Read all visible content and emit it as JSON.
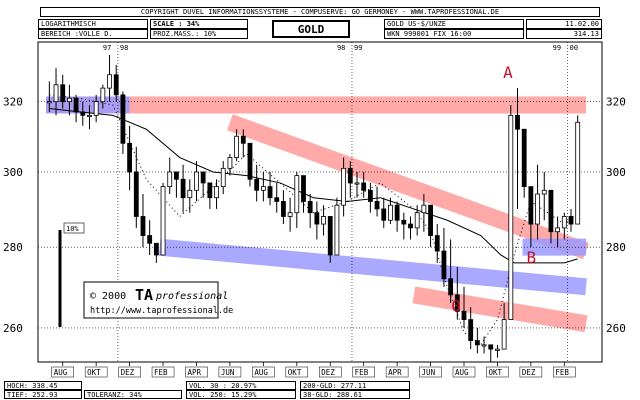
{
  "header": {
    "copyright": "COPYRIGHT  DUVEL INFORMATIONSSYSTEME - COMPUSERVE: GO GERMONEY - WWW.TAPROFESSIONAL.DE",
    "scale_type": "LOGARITHMISCH",
    "range": "BEREICH :VOLLE D.",
    "scale": "SCALE : 34%",
    "prozmass": "PROZ.MASS.:  10%",
    "title": "GOLD",
    "instrument": "GOLD US-$/UNZE",
    "wkn": "WKN 999001  FIX 16:00",
    "date": "11.02.00",
    "price": "314.13"
  },
  "footer": {
    "hoch": "HOCH: 338.45",
    "tief": "TIEF: 252.93",
    "toleranz": "TOLERANZ: 34%",
    "vol30": "VOL. 30 : 20.97%",
    "vol250": "VOL. 250: 15.29%",
    "gld200": "200-GLD: 277.11",
    "gld38": "38-GLD: 288.61"
  },
  "logo": {
    "copyright": "© 2000",
    "brand": "TA",
    "brand_sub": "professional",
    "url": "http://www.taprofessional.de"
  },
  "colors": {
    "resistance_band": "#ff9a9a",
    "support_band": "#9a9aff",
    "annotation": "#c0102a"
  },
  "chart_data": {
    "type": "bar",
    "subtype": "ohlc",
    "ylim": [
      252,
      338
    ],
    "log_scale": true,
    "y_ticks": [
      260,
      280,
      300,
      320
    ],
    "x_ticks": [
      "AUG",
      "OKT",
      "DEZ",
      "FEB",
      "APR",
      "JUN",
      "AUG",
      "OKT",
      "DEZ",
      "FEB",
      "APR",
      "JUN",
      "AUG",
      "OKT",
      "DEZ",
      "FEB"
    ],
    "year_markers": [
      "97",
      "98",
      "98",
      "99",
      "99",
      "00"
    ],
    "grid": true,
    "volatility_label": "10%",
    "annotations": [
      {
        "label": "A",
        "x_month": 27.7,
        "value": 327
      },
      {
        "label": "B",
        "x_month": 29.1,
        "value": 276
      },
      {
        "label": "0",
        "x_month": 24.6,
        "value": 264
      }
    ],
    "bands": [
      {
        "name": "resistance-horizontal",
        "color": "#ff9a9a",
        "from": [
          0,
          319
        ],
        "to": [
          32.3,
          319
        ]
      },
      {
        "name": "support-horizontal",
        "color": "#9a9aff",
        "from": [
          0,
          319
        ],
        "to": [
          5,
          319
        ]
      },
      {
        "name": "resistance-trend",
        "color": "#ff9a9a",
        "from": [
          11,
          314
        ],
        "to": [
          32.3,
          279
        ]
      },
      {
        "name": "support-trend",
        "color": "#9a9aff",
        "from": [
          6.8,
          280
        ],
        "to": [
          32.3,
          270
        ]
      },
      {
        "name": "support-flat-right",
        "color": "#9a9aff",
        "from": [
          28.5,
          280
        ],
        "to": [
          32.3,
          280
        ]
      },
      {
        "name": "zero-band",
        "color": "#ff9a9a",
        "from": [
          22,
          268
        ],
        "to": [
          32.3,
          261
        ]
      }
    ],
    "series": [
      {
        "type": "ohlc",
        "x_month": [
          0.2,
          0.6,
          1.0,
          1.4,
          1.8,
          2.2,
          2.6,
          3.0,
          3.4,
          3.8,
          4.2,
          4.6,
          5.0,
          5.4,
          5.8,
          6.2,
          6.6,
          7.0,
          7.4,
          7.8,
          8.2,
          8.6,
          9.0,
          9.4,
          9.8,
          10.2,
          10.6,
          11.0,
          11.4,
          11.8,
          12.2,
          12.6,
          13.0,
          13.4,
          13.8,
          14.2,
          14.6,
          15.0,
          15.4,
          15.8,
          16.2,
          16.6,
          17.0,
          17.4,
          17.8,
          18.2,
          18.6,
          19.0,
          19.4,
          19.8,
          20.2,
          20.6,
          21.0,
          21.4,
          21.8,
          22.2,
          22.6,
          23.0,
          23.4,
          23.8,
          24.2,
          24.6,
          25.0,
          25.4,
          25.8,
          26.2,
          26.6,
          27.0,
          27.4,
          27.8,
          28.2,
          28.6,
          29.0,
          29.4,
          29.8,
          30.2,
          30.6,
          31.0,
          31.4,
          31.8
        ],
        "high": [
          326,
          330,
          328,
          325,
          322,
          320,
          319,
          322,
          325,
          334,
          331,
          323,
          313,
          307,
          294,
          287,
          279,
          297,
          304,
          300,
          302,
          298,
          303,
          300,
          296,
          298,
          303,
          305,
          312,
          312,
          306,
          302,
          300,
          300,
          297,
          295,
          293,
          300,
          296,
          294,
          292,
          291,
          287,
          293,
          304,
          303,
          300,
          300,
          297,
          296,
          293,
          293,
          292,
          289,
          288,
          291,
          294,
          287,
          286,
          285,
          282,
          275,
          270,
          265,
          260,
          258,
          255,
          256,
          266,
          319,
          324,
          307,
          293,
          302,
          300,
          292,
          288,
          289,
          290,
          316
        ],
        "low": [
          317,
          316,
          318,
          316,
          314,
          313,
          312,
          314,
          318,
          320,
          320,
          305,
          295,
          285,
          280,
          278,
          276,
          280,
          294,
          293,
          289,
          289,
          292,
          293,
          290,
          290,
          294,
          299,
          303,
          304,
          296,
          292,
          292,
          291,
          289,
          286,
          284,
          285,
          289,
          285,
          282,
          283,
          276,
          280,
          288,
          293,
          293,
          293,
          289,
          288,
          285,
          286,
          284,
          282,
          282,
          283,
          284,
          280,
          276,
          270,
          266,
          262,
          260,
          255,
          254,
          254,
          252,
          253,
          255,
          277,
          290,
          293,
          280,
          282,
          287,
          281,
          280,
          282,
          284,
          298
        ],
        "close": [
          320,
          325,
          320,
          321,
          317,
          316,
          316,
          320,
          324,
          328,
          322,
          308,
          300,
          288,
          283,
          281,
          278,
          296,
          300,
          298,
          293,
          295,
          300,
          297,
          293,
          296,
          301,
          304,
          310,
          308,
          298,
          295,
          296,
          293,
          292,
          288,
          289,
          299,
          292,
          289,
          286,
          288,
          278,
          291,
          301,
          297,
          297,
          295,
          292,
          290,
          287,
          291,
          287,
          286,
          285,
          289,
          291,
          283,
          279,
          272,
          268,
          264,
          262,
          257,
          256,
          256,
          255,
          255,
          262,
          316,
          312,
          296,
          286,
          294,
          295,
          284,
          285,
          288,
          286,
          314
        ]
      },
      {
        "name": "200-GLD",
        "type": "line",
        "x_month": [
          0.2,
          2,
          4,
          6,
          8,
          10,
          12,
          14,
          16,
          18,
          20,
          22,
          24,
          26,
          27.2,
          28,
          29,
          30,
          31,
          31.8
        ],
        "values": [
          318,
          317,
          316,
          312,
          304,
          300,
          299,
          297,
          293,
          292,
          293,
          290,
          287,
          283,
          278,
          276,
          276,
          276,
          276,
          277
        ]
      },
      {
        "name": "38-GLD",
        "type": "line",
        "style": "dotted",
        "x_month": [
          0.2,
          2,
          4,
          6,
          8,
          10,
          12,
          14,
          16,
          18,
          20,
          22,
          23,
          24,
          25,
          26,
          27,
          28,
          29,
          30,
          31,
          31.8
        ],
        "values": [
          322,
          321,
          319,
          298,
          288,
          296,
          305,
          297,
          289,
          292,
          297,
          290,
          284,
          270,
          259,
          256,
          262,
          278,
          292,
          289,
          286,
          289
        ]
      }
    ]
  }
}
